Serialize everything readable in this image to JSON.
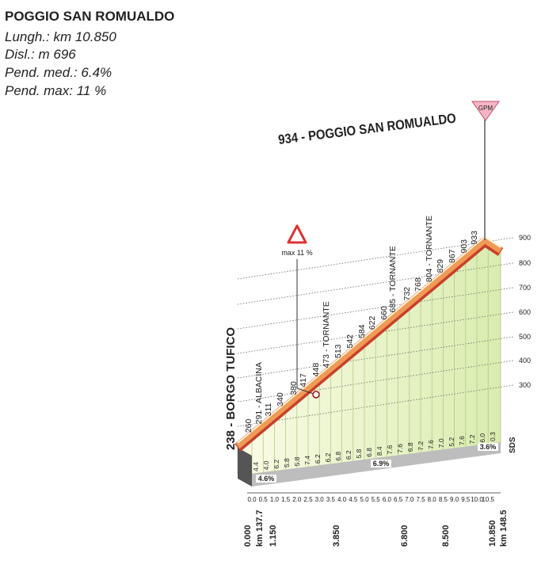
{
  "header": {
    "title": "POGGIO SAN ROMUALDO",
    "lines": [
      "Lungh.: km 10.850",
      "Disl.: m 696",
      "Pend. med.: 6.4%",
      "Pend. max: 11 %"
    ]
  },
  "summit": {
    "label": "934 - POGGIO SAN ROMUALDO",
    "badge": "GPM"
  },
  "start": {
    "label": "238 - BORGO TUFICO"
  },
  "max_sign": "max 11 %",
  "elevation_scale": [
    "900",
    "800",
    "700",
    "600",
    "500",
    "400",
    "300"
  ],
  "profile_labels": [
    "260",
    "291 - ALBACINA",
    "311",
    "340",
    "380",
    "417",
    "448",
    "473 - TORNANTE",
    "513",
    "542",
    "584",
    "622",
    "660",
    "685 - TORNANTE",
    "732",
    "768",
    "804 - TORNANTE",
    "829",
    "867",
    "903",
    "933"
  ],
  "gradients": [
    "4.4",
    "4.0",
    "6.2",
    "5.8",
    "5.8",
    "7.4",
    "6.2",
    "6.2",
    "6.8",
    "6.2",
    "5.8",
    "6.8",
    "8.4",
    "7.6",
    "7.6",
    "6.8",
    "7.2",
    "7.6",
    "7.0",
    "5.2",
    "7.6",
    "7.2",
    "6.0",
    "0.3"
  ],
  "avg_gradients": [
    "4.6%",
    "6.9%",
    "3.6%"
  ],
  "km_ticks": [
    "0.0",
    "0.5",
    "1.0",
    "1.5",
    "2.0",
    "2.5",
    "3.0",
    "3.5",
    "4.0",
    "4.5",
    "5.0",
    "5.5",
    "6.0",
    "6.5",
    "7.0",
    "7.5",
    "8.0",
    "8.5",
    "9.0",
    "9.5",
    "10.0",
    "10.5"
  ],
  "km_points": [
    "0.000",
    "km 137.7",
    "1.150",
    "3.850",
    "6.800",
    "8.500",
    "10.850",
    "km 148.5"
  ],
  "sds": "SDS"
}
